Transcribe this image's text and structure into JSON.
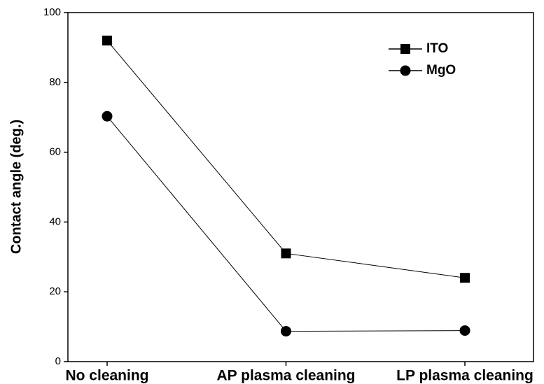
{
  "chart_data": {
    "type": "line",
    "y_label": "Contact angle (deg.)",
    "categories": [
      "No cleaning",
      "AP plasma cleaning",
      "LP plasma cleaning"
    ],
    "series": [
      {
        "name": "ITO",
        "color": "#000000",
        "marker": "square",
        "values": [
          92,
          31,
          24
        ]
      },
      {
        "name": "MgO",
        "color": "#000000",
        "marker": "circle",
        "values": [
          70.3,
          8.7,
          8.9
        ]
      }
    ],
    "ylim": [
      0,
      100
    ],
    "yticks": [
      0,
      20,
      40,
      60,
      80,
      100
    ],
    "legend": "upper right"
  }
}
